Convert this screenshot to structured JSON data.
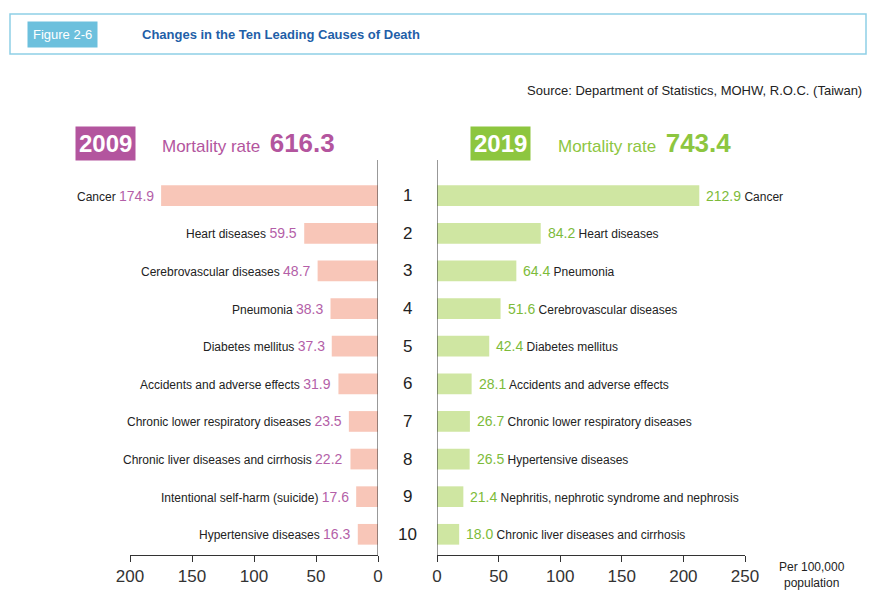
{
  "figure_label": "Figure 2-6",
  "title": "Changes in the Ten Leading Causes of Death",
  "source": "Source: Department of Statistics, MOHW, R.O.C. (Taiwan)",
  "ranks": [
    1,
    2,
    3,
    4,
    5,
    6,
    7,
    8,
    9,
    10
  ],
  "chart_data": [
    {
      "type": "bar",
      "orientation": "horizontal",
      "title": "2009",
      "subtitle": "Mortality rate",
      "total": 616.3,
      "categories": [
        "Cancer",
        "Heart diseases",
        "Cerebrovascular diseases",
        "Pneumonia",
        "Diabetes mellitus",
        "Accidents and adverse effects",
        "Chronic lower respiratory diseases",
        "Chronic liver diseases and cirrhosis",
        "Intentional self-harm (suicide)",
        "Hypertensive diseases"
      ],
      "values": [
        174.9,
        59.5,
        48.7,
        38.3,
        37.3,
        31.9,
        23.5,
        22.2,
        17.6,
        16.3
      ],
      "value_labels": [
        "174.9",
        "59.5",
        "48.7",
        "38.3",
        "37.3",
        "31.9",
        "23.5",
        "22.2",
        "17.6",
        "16.3"
      ],
      "color": "#f8c6b8",
      "xlim": [
        200,
        0
      ],
      "xticks": [
        200,
        150,
        100,
        50,
        0
      ],
      "data_labels": true
    },
    {
      "type": "bar",
      "orientation": "horizontal",
      "title": "2019",
      "subtitle": "Mortality rate",
      "total": 743.4,
      "categories": [
        "Cancer",
        "Heart diseases",
        "Pneumonia",
        "Cerebrovascular diseases",
        "Diabetes mellitus",
        "Accidents and adverse effects",
        "Chronic lower respiratory diseases",
        "Hypertensive diseases",
        "Nephritis, nephrotic syndrome and nephrosis",
        "Chronic liver diseases and cirrhosis"
      ],
      "values": [
        212.9,
        84.2,
        64.4,
        51.6,
        42.4,
        28.1,
        26.7,
        26.5,
        21.4,
        18.0
      ],
      "value_labels": [
        "212.9",
        "84.2",
        "64.4",
        "51.6",
        "42.4",
        "28.1",
        "26.7",
        "26.5",
        "21.4",
        "18.0"
      ],
      "color": "#cfe6a2",
      "xlim": [
        0,
        250
      ],
      "xticks": [
        0,
        50,
        100,
        150,
        200,
        250
      ],
      "data_labels": true,
      "xlabel": "Per 100,000 population"
    }
  ]
}
